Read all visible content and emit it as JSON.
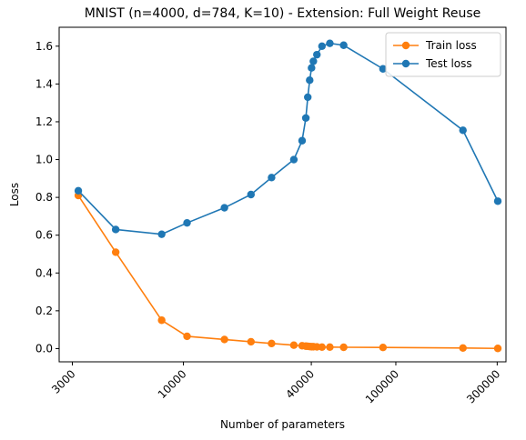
{
  "chart_data": {
    "type": "line",
    "title": "MNIST (n=4000, d=784, K=10) - Extension: Full Weight Reuse",
    "xlabel": "Number of parameters",
    "ylabel": "Loss",
    "xscale": "log",
    "xlim": [
      2600,
      330000
    ],
    "ylim": [
      -0.07,
      1.7
    ],
    "xticks": [
      3000,
      10000,
      40000,
      100000,
      300000
    ],
    "xtick_labels": [
      "3000",
      "10000",
      "40000",
      "100000",
      "300000"
    ],
    "yticks": [
      0.0,
      0.2,
      0.4,
      0.6,
      0.8,
      1.0,
      1.2,
      1.4,
      1.6
    ],
    "ytick_labels": [
      "0.0",
      "0.2",
      "0.4",
      "0.6",
      "0.8",
      "1.0",
      "1.2",
      "1.4",
      "1.6"
    ],
    "legend_position": "top-right",
    "grid": false,
    "series": [
      {
        "name": "Train loss",
        "color": "#ff7f0e",
        "x": [
          3200,
          4800,
          7900,
          10400,
          15600,
          20800,
          26000,
          33100,
          36200,
          37700,
          38500,
          39300,
          40100,
          40900,
          42500,
          44900,
          48900,
          56800,
          87000,
          207000,
          302000
        ],
        "y": [
          0.81,
          0.51,
          0.15,
          0.065,
          0.048,
          0.036,
          0.027,
          0.018,
          0.015,
          0.013,
          0.012,
          0.011,
          0.01,
          0.01,
          0.009,
          0.008,
          0.008,
          0.007,
          0.006,
          0.003,
          0.001
        ]
      },
      {
        "name": "Test loss",
        "color": "#1f77b4",
        "x": [
          3200,
          4800,
          7900,
          10400,
          15600,
          20800,
          26000,
          33100,
          36200,
          37700,
          38500,
          39300,
          40100,
          40900,
          42500,
          44900,
          48900,
          56800,
          87000,
          207000,
          302000
        ],
        "y": [
          0.835,
          0.63,
          0.605,
          0.665,
          0.745,
          0.815,
          0.905,
          1.0,
          1.1,
          1.22,
          1.33,
          1.42,
          1.485,
          1.52,
          1.555,
          1.6,
          1.615,
          1.605,
          1.48,
          1.155,
          0.78
        ]
      }
    ]
  }
}
